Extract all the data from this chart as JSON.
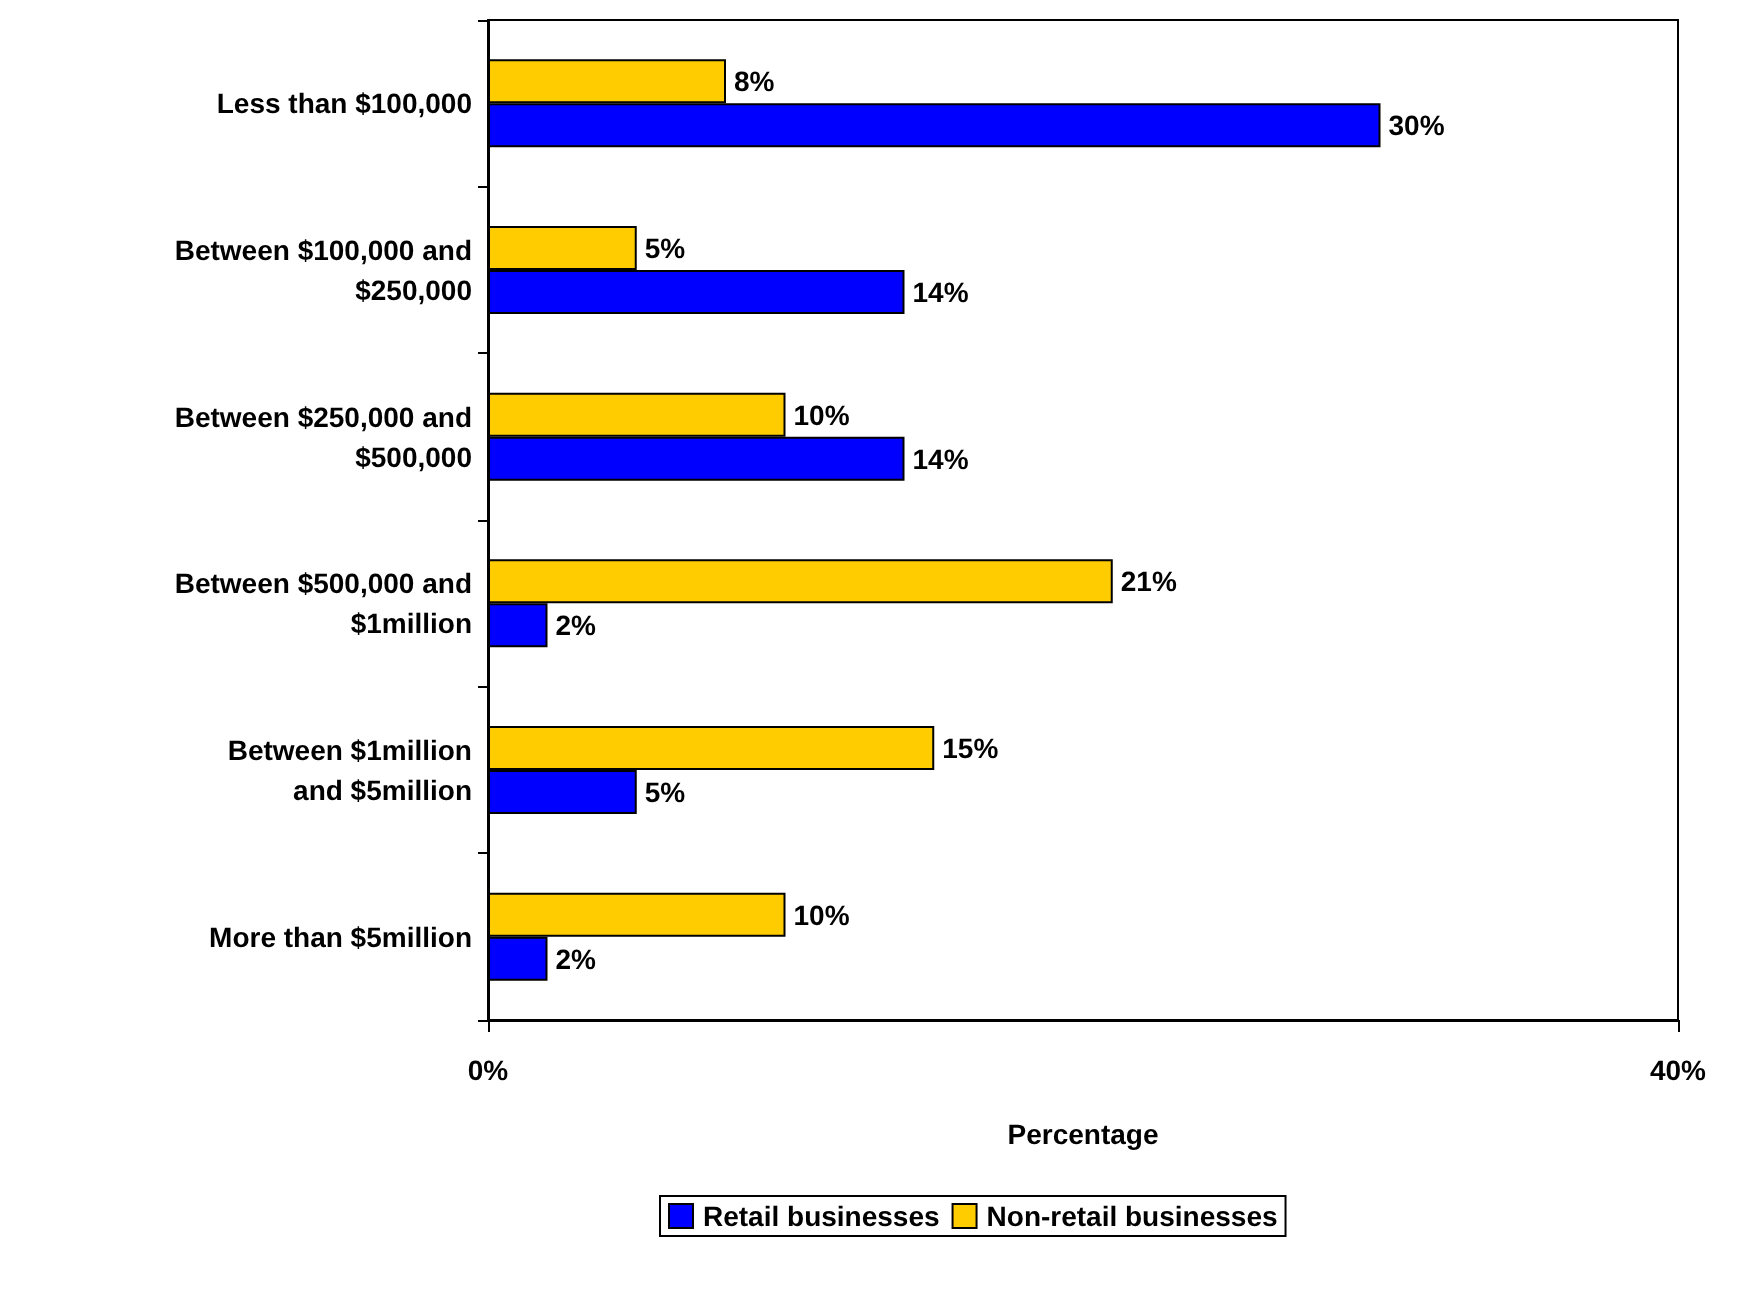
{
  "chart_data": {
    "type": "bar",
    "orientation": "horizontal",
    "xlabel": "Percentage",
    "categories": [
      "Less than $100,000",
      "Between $100,000 and\n$250,000",
      "Between $250,000 and\n$500,000",
      "Between $500,000 and\n$1million",
      "Between $1million\nand $5million",
      "More than $5million"
    ],
    "series": [
      {
        "name": "Retail businesses",
        "color": "#0000ff",
        "values": [
          30,
          14,
          14,
          2,
          5,
          2
        ],
        "value_labels": [
          "30%",
          "14%",
          "14%",
          "2%",
          "5%",
          "2%"
        ]
      },
      {
        "name": "Non-retail businesses",
        "color": "#ffcc00",
        "values": [
          8,
          5,
          10,
          21,
          15,
          10
        ],
        "value_labels": [
          "8%",
          "5%",
          "10%",
          "21%",
          "15%",
          "10%"
        ]
      }
    ],
    "xlim": [
      0,
      40
    ],
    "xticks": [
      {
        "value": 0,
        "label": "0%"
      },
      {
        "value": 40,
        "label": "40%"
      }
    ],
    "grid": false,
    "legend": "bottom"
  }
}
